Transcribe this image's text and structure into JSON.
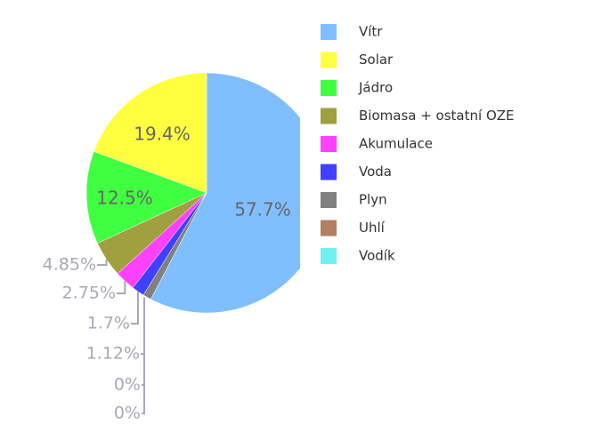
{
  "chart_data": {
    "type": "pie",
    "categories": [
      "Vítr",
      "Solar",
      "Jádro",
      "Biomasa + ostatní OZE",
      "Akumulace",
      "Voda",
      "Plyn",
      "Uhlí",
      "Vodík"
    ],
    "values": [
      57.7,
      19.4,
      12.5,
      4.85,
      2.75,
      1.7,
      1.12,
      0,
      0
    ],
    "value_labels": [
      "57.7%",
      "19.4%",
      "12.5%",
      "4.85%",
      "2.75%",
      "1.7%",
      "1.12%",
      "0%",
      "0%"
    ],
    "colors": [
      "#80bfff",
      "#ffff40",
      "#40ff40",
      "#a0a040",
      "#ff40ff",
      "#4040ff",
      "#808080",
      "#b08060",
      "#70f0f0"
    ],
    "legend": "right"
  }
}
